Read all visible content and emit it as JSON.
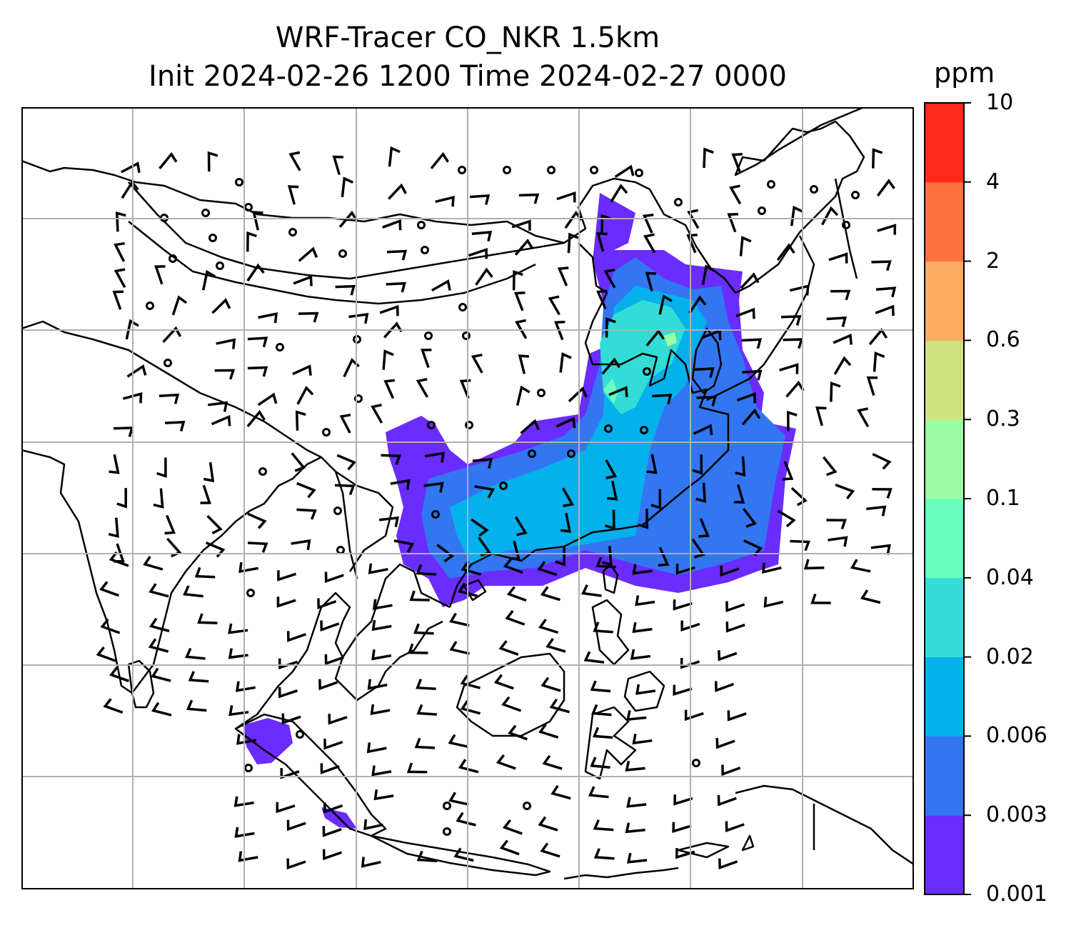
{
  "title": {
    "line1": "WRF-Tracer CO_NKR 1.5km",
    "line2": "Init 2024-02-26 1200 Time 2024-02-27 0000"
  },
  "colorbar": {
    "unit": "ppm",
    "levels": [
      "0.001",
      "0.003",
      "0.006",
      "0.02",
      "0.04",
      "0.1",
      "0.3",
      "0.6",
      "2",
      "4",
      "10"
    ],
    "colors": [
      "#6a2cff",
      "#3276f2",
      "#04b1ec",
      "#33dcd6",
      "#68ffbf",
      "#9cfca4",
      "#d0e27f",
      "#fdac61",
      "#ff713f",
      "#ff2b1a"
    ]
  },
  "map": {
    "gridlines": true,
    "plume_colors": {
      "c1": "#6a2cff",
      "c2": "#3276f2",
      "c3": "#04b1ec",
      "c4": "#33dcd6",
      "c5": "#68ffbf",
      "c6": "#9cfca4"
    }
  }
}
